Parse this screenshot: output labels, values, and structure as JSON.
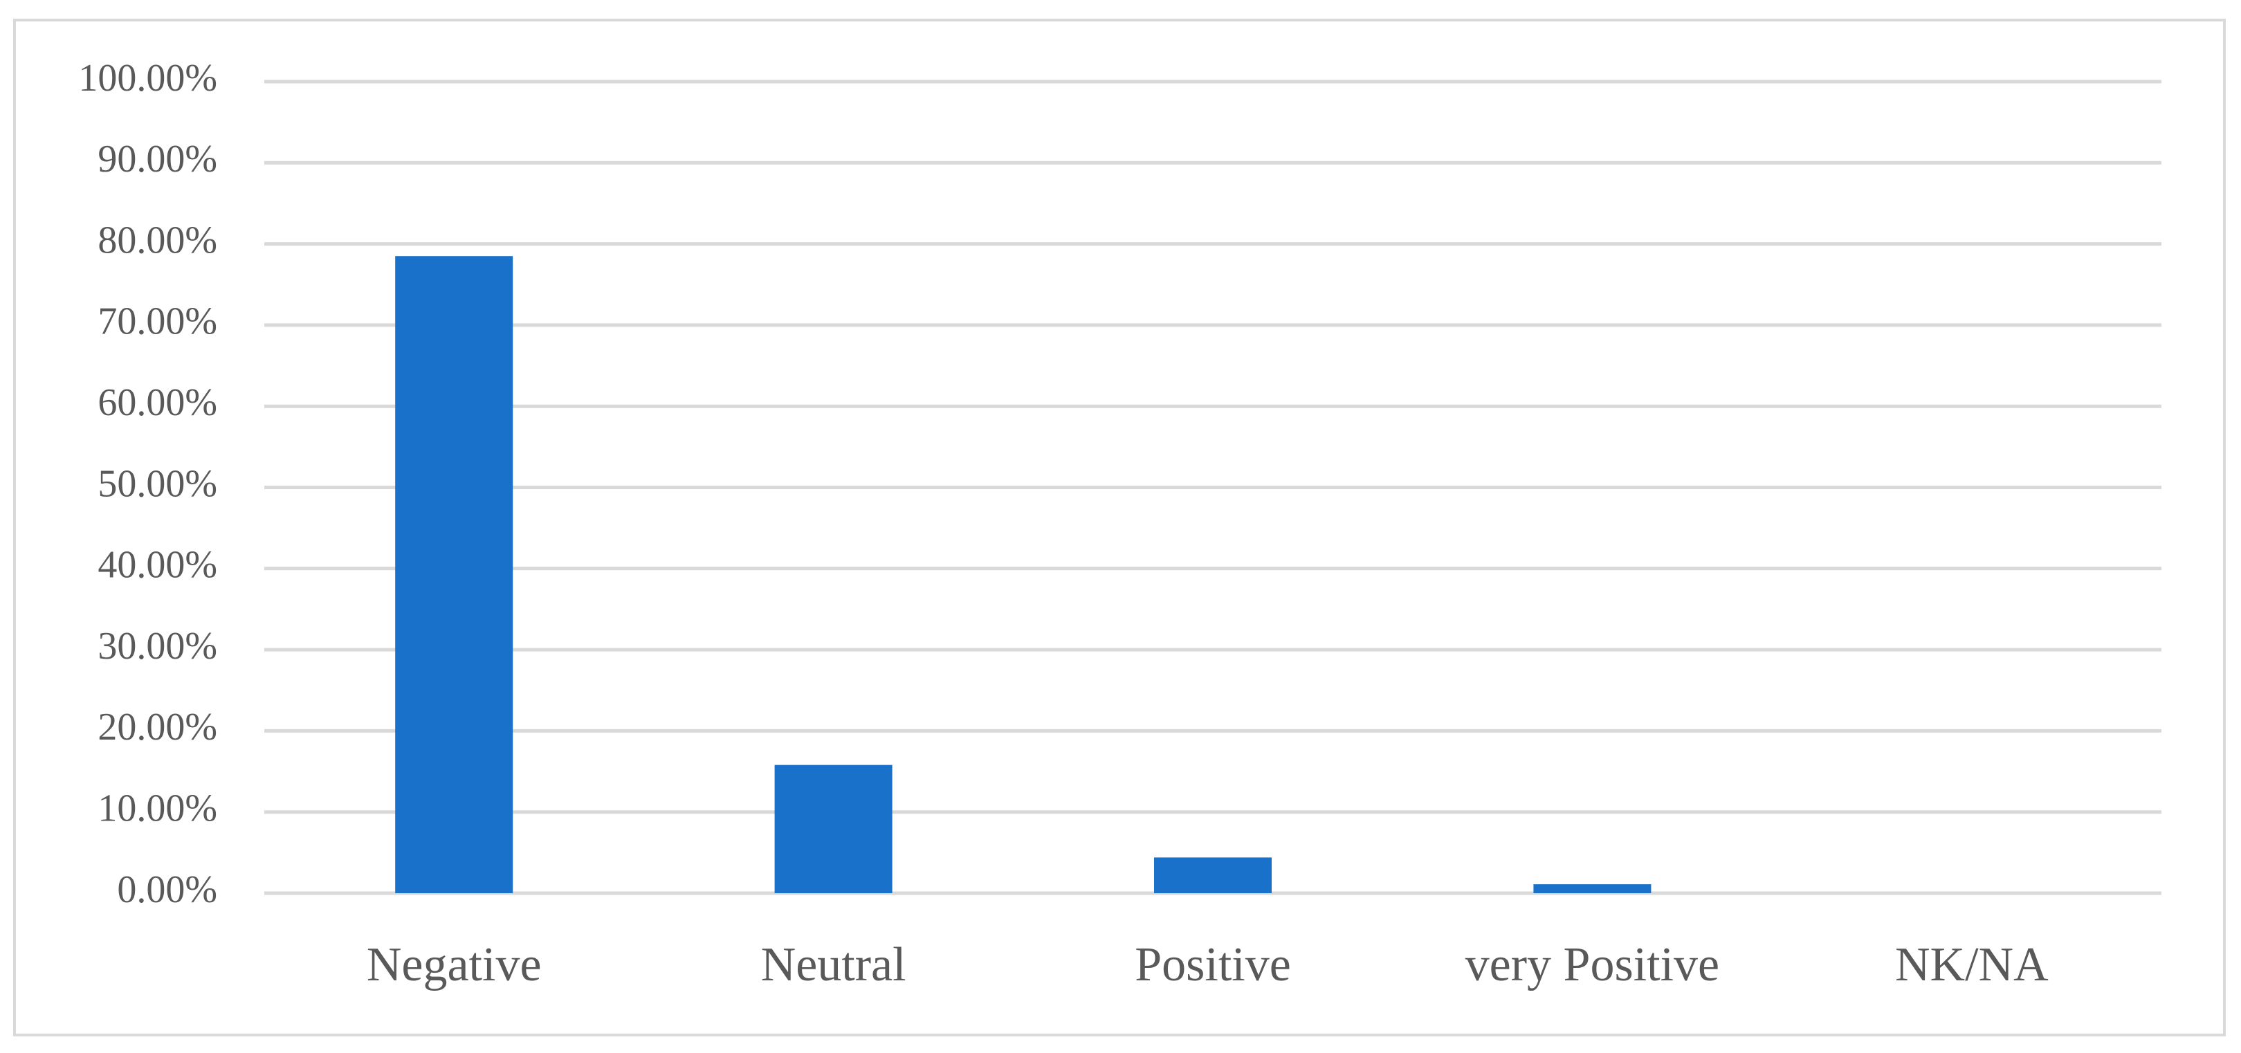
{
  "chart_data": {
    "type": "bar",
    "categories": [
      "Negative",
      "Neutral",
      "Positive",
      "very Positive",
      "NK/NA"
    ],
    "values": [
      78.5,
      15.8,
      4.4,
      1.1,
      0
    ],
    "color": "#1a71c9",
    "ylim": [
      0,
      100
    ],
    "yticks": [
      {
        "value": 0,
        "label": "0.00%"
      },
      {
        "value": 10,
        "label": "10.00%"
      },
      {
        "value": 20,
        "label": "20.00%"
      },
      {
        "value": 30,
        "label": "30.00%"
      },
      {
        "value": 40,
        "label": "40.00%"
      },
      {
        "value": 50,
        "label": "50.00%"
      },
      {
        "value": 60,
        "label": "60.00%"
      },
      {
        "value": 70,
        "label": "70.00%"
      },
      {
        "value": 80,
        "label": "80.00%"
      },
      {
        "value": 90,
        "label": "90.00%"
      },
      {
        "value": 100,
        "label": "100.00%"
      }
    ],
    "grid": true
  }
}
